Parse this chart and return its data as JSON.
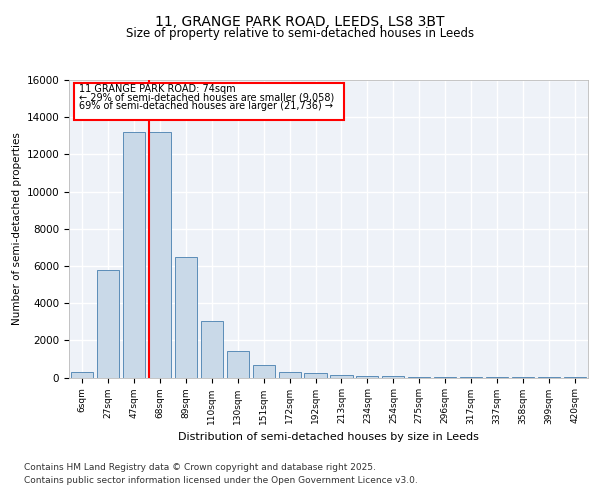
{
  "title_line1": "11, GRANGE PARK ROAD, LEEDS, LS8 3BT",
  "title_line2": "Size of property relative to semi-detached houses in Leeds",
  "xlabel": "Distribution of semi-detached houses by size in Leeds",
  "ylabel": "Number of semi-detached properties",
  "categories": [
    "6sqm",
    "27sqm",
    "47sqm",
    "68sqm",
    "89sqm",
    "110sqm",
    "130sqm",
    "151sqm",
    "172sqm",
    "192sqm",
    "213sqm",
    "234sqm",
    "254sqm",
    "275sqm",
    "296sqm",
    "317sqm",
    "337sqm",
    "358sqm",
    "399sqm",
    "420sqm"
  ],
  "values": [
    300,
    5800,
    13200,
    13200,
    6500,
    3050,
    1450,
    650,
    280,
    230,
    150,
    90,
    70,
    50,
    35,
    25,
    15,
    10,
    5,
    5
  ],
  "bar_color": "#c9d9e8",
  "bar_edge_color": "#5b8db8",
  "property_sqm": 74,
  "pct_smaller": 29,
  "pct_larger": 69,
  "count_smaller": 9058,
  "count_larger": 21736,
  "annotation_text": "11 GRANGE PARK ROAD: 74sqm",
  "arrow_left_text": "← 29% of semi-detached houses are smaller (9,058)",
  "arrow_right_text": "69% of semi-detached houses are larger (21,736) →",
  "ylim": [
    0,
    16000
  ],
  "yticks": [
    0,
    2000,
    4000,
    6000,
    8000,
    10000,
    12000,
    14000,
    16000
  ],
  "footnote1": "Contains HM Land Registry data © Crown copyright and database right 2025.",
  "footnote2": "Contains public sector information licensed under the Open Government Licence v3.0.",
  "bg_color": "#eef2f8",
  "grid_color": "#ffffff",
  "fig_bg_color": "#ffffff",
  "prop_line_bar_index": 3
}
